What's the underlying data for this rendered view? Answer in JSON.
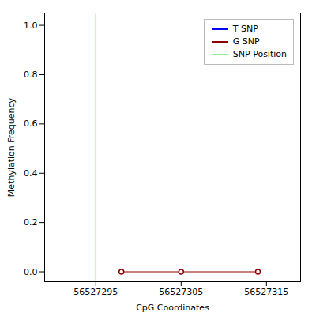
{
  "chart_data": {
    "type": "line",
    "xlabel": "CpG Coordinates",
    "ylabel": "Methylation Frequency",
    "series": [
      {
        "name": "T SNP",
        "color": "#0000ff",
        "x": [],
        "values": []
      },
      {
        "name": "G SNP",
        "color": "#8b0000",
        "x": [
          56527298,
          56527305,
          56527314
        ],
        "values": [
          0.0,
          0.0,
          0.0
        ],
        "marker": "circle"
      },
      {
        "name": "SNP Position",
        "type": "vline",
        "color": "#90ee90",
        "x": [
          56527295
        ]
      }
    ],
    "xlim": [
      56527289,
      56527319
    ],
    "ylim": [
      -0.04,
      1.05
    ],
    "xticks": [
      56527295,
      56527305,
      56527315
    ],
    "yticks": [
      {
        "value": 0.0,
        "label": "0.0"
      },
      0.2,
      0.4,
      0.6,
      0.8,
      {
        "value": 1.0,
        "label": "1.0"
      }
    ],
    "grid": false,
    "legend": "upper right"
  }
}
